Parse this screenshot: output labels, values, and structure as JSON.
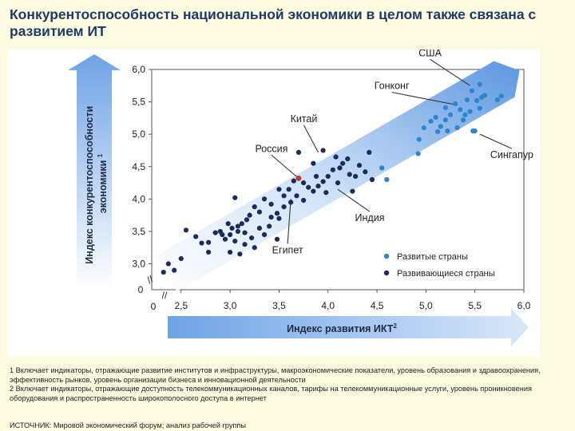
{
  "slide": {
    "title": "Конкурентоспособность национальной экономики в целом также связана с развитием ИТ",
    "notes": [
      "1 Включает индикаторы, отражающие развитие институтов и инфраструктуры, макроэкономические показатели, уровень образования и здравоохранения, эффективность рынков, уровень организации бизнеса и инновационной деятельности",
      "2 Включает индикаторы, отражающие доступность телекоммуникационных каналов, тарифы на телекоммуникационные услуги, уровень проникновения оборудования и распространенность широкополосного доступа в интернет"
    ],
    "source": "ИСТОЧНИК: Мировой экономический форум; анализ рабочей группы"
  },
  "chart_data": {
    "type": "scatter",
    "xlabel": "Индекс развития ИКТ",
    "xlabel_sup": "2",
    "ylabel": "Индекс конкурентоспособности экономики",
    "ylabel_sup": "1",
    "xlim": [
      2.2,
      6.0
    ],
    "ylim": [
      2.6,
      6.0
    ],
    "x_ticks": [
      "2,5",
      "3,0",
      "3,5",
      "4,0",
      "4,5",
      "5,0",
      "5,5",
      "6,0"
    ],
    "x_tick_values": [
      2.5,
      3.0,
      3.5,
      4.0,
      4.5,
      5.0,
      5.5,
      6.0
    ],
    "y_ticks": [
      "3,0",
      "3,5",
      "4,0",
      "4,5",
      "5,0",
      "5,5",
      "6,0"
    ],
    "y_tick_values": [
      3.0,
      3.5,
      4.0,
      4.5,
      5.0,
      5.5,
      6.0
    ],
    "origin_label": "0",
    "axis_break": "//",
    "legend_position": "bottom-right",
    "colors": {
      "developed": "#2b86cf",
      "developing": "#1a2b5e",
      "russia": "#c0392b",
      "trend_band": "#9ec3ee"
    },
    "series": [
      {
        "name": "Развитые страны",
        "points": [
          [
            5.55,
            5.77
          ],
          [
            5.47,
            5.67
          ],
          [
            5.57,
            5.57
          ],
          [
            5.52,
            5.52
          ],
          [
            5.6,
            5.6
          ],
          [
            5.42,
            5.53
          ],
          [
            5.77,
            5.59
          ],
          [
            5.73,
            5.53
          ],
          [
            5.3,
            5.47
          ],
          [
            5.35,
            5.38
          ],
          [
            5.2,
            5.41
          ],
          [
            5.55,
            5.4
          ],
          [
            5.45,
            5.35
          ],
          [
            5.4,
            5.3
          ],
          [
            5.38,
            5.22
          ],
          [
            5.2,
            5.22
          ],
          [
            5.1,
            5.26
          ],
          [
            5.25,
            5.3
          ],
          [
            5.05,
            5.2
          ],
          [
            5.15,
            5.12
          ],
          [
            4.98,
            5.1
          ],
          [
            5.12,
            5.04
          ],
          [
            5.22,
            5.05
          ],
          [
            5.32,
            5.1
          ],
          [
            5.48,
            5.05
          ],
          [
            4.93,
            4.92
          ],
          [
            4.92,
            4.7
          ],
          [
            4.55,
            4.48
          ],
          [
            4.6,
            4.3
          ],
          [
            5.5,
            5.05
          ]
        ]
      },
      {
        "name": "Развивающиеся страны",
        "points": [
          [
            2.32,
            2.87
          ],
          [
            2.37,
            3.0
          ],
          [
            2.43,
            2.9
          ],
          [
            2.55,
            3.52
          ],
          [
            2.65,
            3.42
          ],
          [
            2.78,
            3.18
          ],
          [
            2.71,
            3.32
          ],
          [
            2.78,
            3.33
          ],
          [
            2.85,
            3.48
          ],
          [
            2.9,
            3.5
          ],
          [
            2.95,
            3.38
          ],
          [
            3.0,
            3.45
          ],
          [
            3.02,
            3.55
          ],
          [
            3.05,
            3.35
          ],
          [
            3.08,
            3.5
          ],
          [
            3.12,
            3.62
          ],
          [
            3.15,
            3.48
          ],
          [
            3.17,
            3.68
          ],
          [
            3.2,
            3.75
          ],
          [
            3.25,
            3.88
          ],
          [
            3.22,
            3.4
          ],
          [
            3.3,
            3.55
          ],
          [
            3.3,
            3.8
          ],
          [
            3.35,
            4.0
          ],
          [
            3.42,
            3.92
          ],
          [
            3.42,
            3.72
          ],
          [
            3.48,
            3.78
          ],
          [
            3.5,
            3.7
          ],
          [
            3.55,
            4.05
          ],
          [
            3.5,
            4.15
          ],
          [
            3.6,
            4.15
          ],
          [
            3.65,
            4.28
          ],
          [
            3.68,
            4.05
          ],
          [
            3.75,
            3.98
          ],
          [
            3.75,
            4.25
          ],
          [
            3.8,
            4.18
          ],
          [
            3.85,
            4.12
          ],
          [
            3.85,
            4.55
          ],
          [
            3.88,
            4.35
          ],
          [
            3.9,
            4.2
          ],
          [
            3.95,
            4.27
          ],
          [
            3.98,
            4.1
          ],
          [
            4.0,
            4.35
          ],
          [
            4.05,
            4.45
          ],
          [
            4.08,
            4.65
          ],
          [
            4.12,
            4.48
          ],
          [
            4.15,
            4.55
          ],
          [
            4.2,
            4.62
          ],
          [
            4.22,
            4.38
          ],
          [
            4.28,
            4.35
          ],
          [
            4.32,
            4.52
          ],
          [
            4.38,
            4.42
          ],
          [
            4.42,
            4.72
          ],
          [
            4.45,
            4.3
          ],
          [
            4.25,
            4.12
          ],
          [
            3.7,
            4.72
          ],
          [
            3.95,
            4.75
          ],
          [
            3.05,
            4.02
          ],
          [
            3.0,
            3.18
          ],
          [
            3.48,
            3.38
          ],
          [
            3.62,
            3.95
          ],
          [
            4.1,
            4.25
          ],
          [
            3.4,
            3.58
          ],
          [
            2.98,
            3.62
          ],
          [
            3.08,
            3.58
          ],
          [
            3.15,
            3.3
          ],
          [
            2.5,
            3.08
          ],
          [
            3.25,
            3.25
          ],
          [
            3.1,
            3.15
          ],
          [
            2.92,
            3.45
          ],
          [
            3.35,
            3.45
          ],
          [
            3.55,
            3.88
          ]
        ]
      }
    ],
    "highlight": {
      "label": "Россия",
      "point": [
        3.7,
        4.32
      ]
    },
    "annotations": [
      {
        "label": "США",
        "point": [
          5.45,
          5.75
        ]
      },
      {
        "label": "Гонконг",
        "point": [
          5.32,
          5.45
        ]
      },
      {
        "label": "Китай",
        "point": [
          3.9,
          4.72
        ]
      },
      {
        "label": "Россия",
        "point": [
          3.7,
          4.32
        ]
      },
      {
        "label": "Сингапур",
        "point": [
          5.55,
          5.0
        ]
      },
      {
        "label": "Индия",
        "point": [
          4.1,
          4.15
        ]
      },
      {
        "label": "Египет",
        "point": [
          3.62,
          4.0
        ]
      }
    ]
  }
}
